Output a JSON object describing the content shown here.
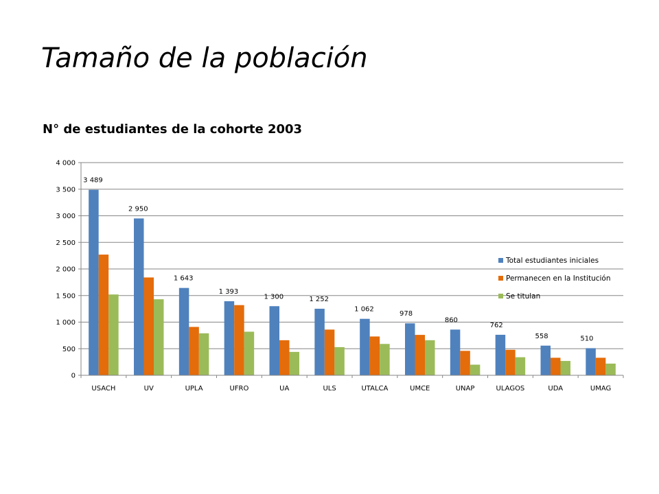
{
  "slide": {
    "title": "Tamaño de la población"
  },
  "chart_data": {
    "type": "bar",
    "title": "N° de estudiantes de la cohorte 2003",
    "xlabel": "",
    "ylabel": "",
    "ylim": [
      0,
      4000
    ],
    "yticks": [
      0,
      500,
      1000,
      1500,
      2000,
      2500,
      3000,
      3500,
      4000
    ],
    "ytick_labels": [
      "0",
      "500",
      "1 000",
      "1 500",
      "2 000",
      "2 500",
      "3 000",
      "3 500",
      "4 000"
    ],
    "grid": true,
    "legend_position": "right",
    "categories": [
      "USACH",
      "UV",
      "UPLA",
      "UFRO",
      "UA",
      "ULS",
      "UTALCA",
      "UMCE",
      "UNAP",
      "ULAGOS",
      "UDA",
      "UMAG"
    ],
    "series": [
      {
        "name": "Total estudiantes iniciales",
        "color": "#4F81BD",
        "values": [
          3489,
          2950,
          1643,
          1393,
          1300,
          1252,
          1062,
          978,
          860,
          762,
          558,
          510
        ],
        "data_labels": [
          "3 489",
          "2 950",
          "1 643",
          "1 393",
          "1 300",
          "1 252",
          "1 062",
          "978",
          "860",
          "762",
          "558",
          "510"
        ]
      },
      {
        "name": "Permanecen en la Institución",
        "color": "#E46C0A",
        "values": [
          2270,
          1840,
          910,
          1320,
          660,
          860,
          730,
          760,
          460,
          480,
          330,
          330
        ]
      },
      {
        "name": "Se titulan",
        "color": "#9BBB59",
        "values": [
          1520,
          1430,
          790,
          820,
          440,
          530,
          590,
          660,
          200,
          340,
          270,
          220
        ]
      }
    ]
  }
}
